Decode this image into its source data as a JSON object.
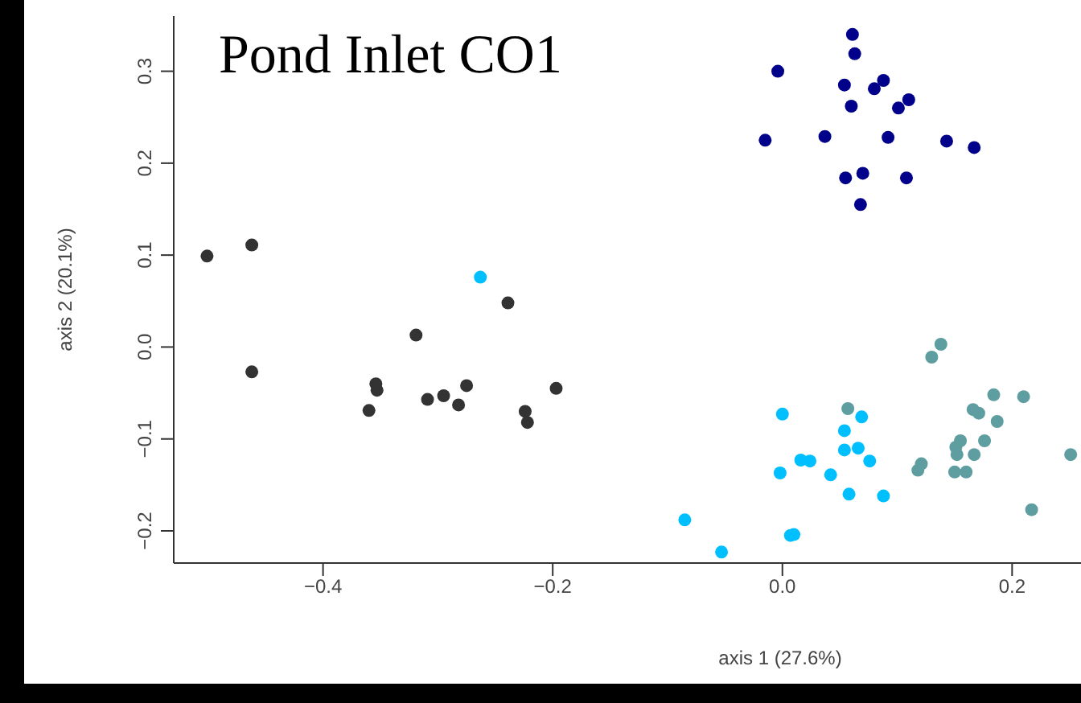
{
  "chart_data": {
    "type": "scatter",
    "title": "Pond Inlet CO1",
    "xlabel": "axis 1 (27.6%)",
    "ylabel": "axis 2 (20.1%)",
    "xlim": [
      -0.53,
      0.26
    ],
    "xticks": [
      -0.4,
      -0.2,
      {
        "value": 0,
        "label": "0.0"
      },
      0.2
    ],
    "ylim": [
      -0.235,
      0.36
    ],
    "yticks": [
      -0.2,
      -0.1,
      {
        "value": 0,
        "label": "0.0"
      },
      0.1,
      0.2,
      0.3
    ],
    "grid": false,
    "legend": false,
    "marker": "circle",
    "series": [
      {
        "color": "#333333",
        "x": [
          -0.501,
          -0.462,
          -0.462,
          -0.239,
          -0.319,
          -0.354,
          -0.353,
          -0.36,
          -0.309,
          -0.295,
          -0.282,
          -0.275,
          -0.197,
          -0.224,
          -0.222
        ],
        "values": [
          0.099,
          0.111,
          -0.027,
          0.048,
          0.013,
          -0.04,
          -0.047,
          -0.069,
          -0.057,
          -0.053,
          -0.063,
          -0.042,
          -0.045,
          -0.07,
          -0.082
        ]
      },
      {
        "color": "#00bfff",
        "x": [
          -0.263,
          0.0,
          0.069,
          0.054,
          0.054,
          0.066,
          0.016,
          0.024,
          0.076,
          -0.002,
          0.042,
          0.058,
          0.088,
          -0.085,
          0.01,
          0.007,
          -0.053
        ],
        "values": [
          0.076,
          -0.073,
          -0.076,
          -0.091,
          -0.112,
          -0.11,
          -0.123,
          -0.124,
          -0.124,
          -0.137,
          -0.139,
          -0.16,
          -0.162,
          -0.188,
          -0.204,
          -0.205,
          -0.223
        ]
      },
      {
        "color": "#5f9ea0",
        "x": [
          0.138,
          0.13,
          0.057,
          0.184,
          0.21,
          0.166,
          0.171,
          0.187,
          0.155,
          0.176,
          0.151,
          0.152,
          0.167,
          0.251,
          0.121,
          0.118,
          0.15,
          0.16,
          0.217
        ],
        "values": [
          0.003,
          -0.011,
          -0.067,
          -0.052,
          -0.054,
          -0.068,
          -0.072,
          -0.081,
          -0.102,
          -0.102,
          -0.109,
          -0.117,
          -0.117,
          -0.117,
          -0.127,
          -0.134,
          -0.136,
          -0.136,
          -0.177
        ]
      },
      {
        "color": "#00008b",
        "x": [
          0.061,
          0.063,
          -0.004,
          0.054,
          0.088,
          0.08,
          0.06,
          0.11,
          0.101,
          -0.015,
          0.037,
          0.092,
          0.143,
          0.167,
          0.055,
          0.07,
          0.108,
          0.068
        ],
        "values": [
          0.34,
          0.319,
          0.3,
          0.285,
          0.29,
          0.281,
          0.262,
          0.269,
          0.26,
          0.225,
          0.229,
          0.228,
          0.224,
          0.217,
          0.184,
          0.189,
          0.184,
          0.155
        ]
      }
    ]
  }
}
